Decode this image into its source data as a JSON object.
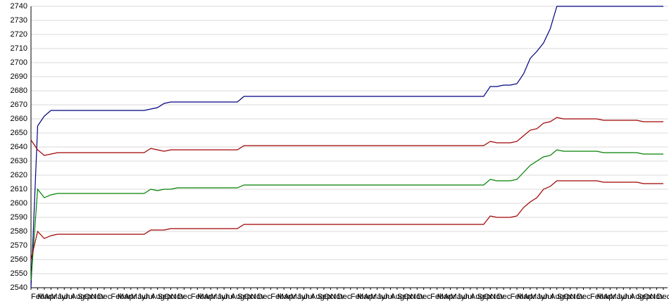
{
  "chart_data": {
    "type": "line",
    "categories": [
      "Feb",
      "Mar",
      "Apr",
      "May",
      "Jun",
      "Jul",
      "Aug",
      "Sep",
      "Oct",
      "Nov",
      "Dec",
      null,
      "Feb",
      "Mar",
      "Apr",
      "May",
      "Jun",
      "Jul",
      "Aug",
      "Sep",
      "Oct",
      "Nov",
      "Dec",
      null,
      "Feb",
      "Mar",
      "Apr",
      "May",
      "Jun",
      "Jul",
      "Aug",
      "Sep",
      "Oct",
      "Nov",
      "Dec",
      null,
      "Feb",
      "Mar",
      "Apr",
      "May",
      "Jun",
      "Jul",
      "Aug",
      "Sep",
      "Oct",
      "Nov",
      "Dec",
      null,
      "Feb",
      "Mar",
      "Apr",
      "May",
      "Jun",
      "Jul",
      "Aug",
      "Sep",
      "Oct",
      "Nov",
      "Dec",
      null,
      "Feb",
      "Mar",
      "Apr",
      "May",
      "Jun",
      "Jul",
      "Aug",
      "Sep",
      "Oct",
      "Nov",
      "Dec",
      null,
      "Feb",
      "Mar",
      "Apr",
      "May",
      "Jun",
      "Jul",
      "Aug",
      "Sep",
      "Oct",
      "Nov",
      "Dec",
      null,
      "Feb",
      "Mar",
      "Apr",
      "May",
      "Jun",
      "Jul",
      "Aug",
      "Sep",
      "Oct",
      "Nov",
      "Dec",
      null
    ],
    "series": [
      {
        "color": "#000080",
        "values": [
          2540,
          2655,
          2662,
          2666,
          2666,
          2666,
          2666,
          2666,
          2666,
          2666,
          2666,
          2666,
          2666,
          2666,
          2666,
          2666,
          2666,
          2666,
          2667,
          2668,
          2671,
          2672,
          2672,
          2672,
          2672,
          2672,
          2672,
          2672,
          2672,
          2672,
          2672,
          2672,
          2676,
          2676,
          2676,
          2676,
          2676,
          2676,
          2676,
          2676,
          2676,
          2676,
          2676,
          2676,
          2676,
          2676,
          2676,
          2676,
          2676,
          2676,
          2676,
          2676,
          2676,
          2676,
          2676,
          2676,
          2676,
          2676,
          2676,
          2676,
          2676,
          2676,
          2676,
          2676,
          2676,
          2676,
          2676,
          2676,
          2676,
          2683,
          2683,
          2684,
          2684,
          2685,
          2692,
          2703,
          2708,
          2714,
          2724,
          2740,
          2740,
          2740,
          2740,
          2740,
          2740,
          2740,
          2740,
          2740,
          2740,
          2740,
          2740,
          2740,
          2740,
          2740,
          2740,
          2740
        ]
      },
      {
        "color": "#a00000",
        "values": [
          2645,
          2638,
          2634,
          2635,
          2636,
          2636,
          2636,
          2636,
          2636,
          2636,
          2636,
          2636,
          2636,
          2636,
          2636,
          2636,
          2636,
          2636,
          2639,
          2638,
          2637,
          2638,
          2638,
          2638,
          2638,
          2638,
          2638,
          2638,
          2638,
          2638,
          2638,
          2638,
          2641,
          2641,
          2641,
          2641,
          2641,
          2641,
          2641,
          2641,
          2641,
          2641,
          2641,
          2641,
          2641,
          2641,
          2641,
          2641,
          2641,
          2641,
          2641,
          2641,
          2641,
          2641,
          2641,
          2641,
          2641,
          2641,
          2641,
          2641,
          2641,
          2641,
          2641,
          2641,
          2641,
          2641,
          2641,
          2641,
          2641,
          2644,
          2643,
          2643,
          2643,
          2644,
          2648,
          2652,
          2653,
          2657,
          2658,
          2661,
          2660,
          2660,
          2660,
          2660,
          2660,
          2660,
          2659,
          2659,
          2659,
          2659,
          2659,
          2659,
          2658,
          2658,
          2658,
          2658
        ]
      },
      {
        "color": "#008000",
        "values": [
          2545,
          2610,
          2604,
          2606,
          2607,
          2607,
          2607,
          2607,
          2607,
          2607,
          2607,
          2607,
          2607,
          2607,
          2607,
          2607,
          2607,
          2607,
          2610,
          2609,
          2610,
          2610,
          2611,
          2611,
          2611,
          2611,
          2611,
          2611,
          2611,
          2611,
          2611,
          2611,
          2613,
          2613,
          2613,
          2613,
          2613,
          2613,
          2613,
          2613,
          2613,
          2613,
          2613,
          2613,
          2613,
          2613,
          2613,
          2613,
          2613,
          2613,
          2613,
          2613,
          2613,
          2613,
          2613,
          2613,
          2613,
          2613,
          2613,
          2613,
          2613,
          2613,
          2613,
          2613,
          2613,
          2613,
          2613,
          2613,
          2613,
          2617,
          2616,
          2616,
          2616,
          2617,
          2622,
          2627,
          2630,
          2633,
          2634,
          2638,
          2637,
          2637,
          2637,
          2637,
          2637,
          2637,
          2636,
          2636,
          2636,
          2636,
          2636,
          2636,
          2635,
          2635,
          2635,
          2635
        ]
      },
      {
        "color": "#a00000",
        "values": [
          2560,
          2580,
          2575,
          2577,
          2578,
          2578,
          2578,
          2578,
          2578,
          2578,
          2578,
          2578,
          2578,
          2578,
          2578,
          2578,
          2578,
          2578,
          2581,
          2581,
          2581,
          2582,
          2582,
          2582,
          2582,
          2582,
          2582,
          2582,
          2582,
          2582,
          2582,
          2582,
          2585,
          2585,
          2585,
          2585,
          2585,
          2585,
          2585,
          2585,
          2585,
          2585,
          2585,
          2585,
          2585,
          2585,
          2585,
          2585,
          2585,
          2585,
          2585,
          2585,
          2585,
          2585,
          2585,
          2585,
          2585,
          2585,
          2585,
          2585,
          2585,
          2585,
          2585,
          2585,
          2585,
          2585,
          2585,
          2585,
          2585,
          2591,
          2590,
          2590,
          2590,
          2591,
          2597,
          2601,
          2604,
          2610,
          2612,
          2616,
          2616,
          2616,
          2616,
          2616,
          2616,
          2616,
          2615,
          2615,
          2615,
          2615,
          2615,
          2615,
          2614,
          2614,
          2614,
          2614
        ]
      }
    ],
    "ylim": [
      2540,
      2740
    ],
    "yticks": [
      2540,
      2550,
      2560,
      2570,
      2580,
      2590,
      2600,
      2610,
      2620,
      2630,
      2640,
      2650,
      2660,
      2670,
      2680,
      2690,
      2700,
      2710,
      2720,
      2730,
      2740
    ],
    "grid": true
  }
}
